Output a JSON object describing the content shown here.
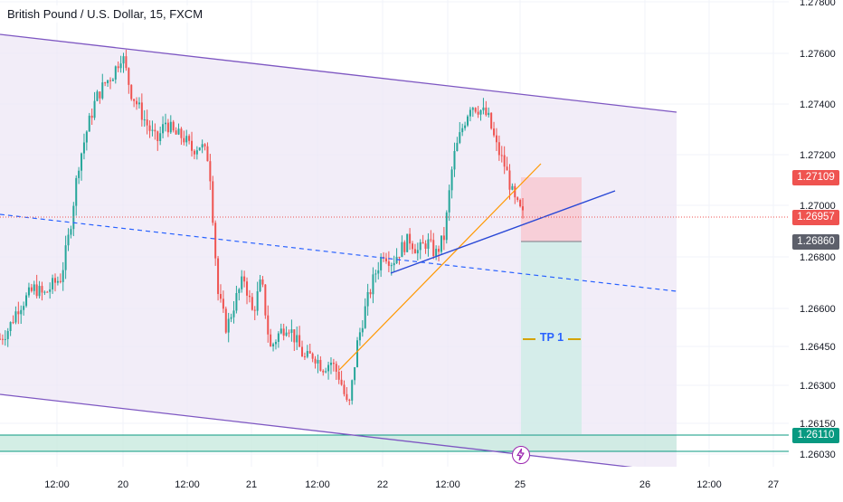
{
  "title": "British Pound / U.S. Dollar, 15, FXCM",
  "colors": {
    "channel": "#7e57c2",
    "channel_fill": "#ede7f6",
    "up_candle": "#26a69a",
    "down_candle": "#ef5350",
    "trendline_blue": "#2948d6",
    "trendline_orange": "#ff9800",
    "midline": "#2962ff",
    "stop_zone": "#f8c9d2",
    "target_zone": "#d2ece8",
    "support_zone": "#c8eadf",
    "current_price": "#ef5350",
    "entry_tag": "#5d606b",
    "support_tag": "#089981"
  },
  "chart_data": {
    "type": "candlestick",
    "symbol": "British Pound / U.S. Dollar",
    "interval": "15",
    "source": "FXCM",
    "x_tick_labels": [
      "12:00",
      "20",
      "12:00",
      "21",
      "12:00",
      "22",
      "12:00",
      "25",
      "26",
      "12:00",
      "27"
    ],
    "y_tick_labels": [
      "1.27800",
      "1.27600",
      "1.27400",
      "1.27200",
      "1.27000",
      "1.26800",
      "1.26600",
      "1.26450",
      "1.26300",
      "1.26150",
      "1.26030"
    ],
    "price_tags": [
      {
        "name": "stop",
        "value": "1.27109"
      },
      {
        "name": "current",
        "value": "1.26957"
      },
      {
        "name": "entry",
        "value": "1.26860"
      },
      {
        "name": "support",
        "value": "1.26110"
      }
    ],
    "annotations": [
      "TP 1"
    ],
    "price_path": [
      1.2648,
      1.2652,
      1.266,
      1.2664,
      1.2668,
      1.2665,
      1.2669,
      1.2672,
      1.269,
      1.2716,
      1.273,
      1.2742,
      1.2748,
      1.2752,
      1.276,
      1.2745,
      1.2738,
      1.2731,
      1.2725,
      1.2733,
      1.2728,
      1.2727,
      1.2722,
      1.2724,
      1.2718,
      1.2666,
      1.2652,
      1.2663,
      1.2672,
      1.2658,
      1.2671,
      1.2644,
      1.265,
      1.2654,
      1.2647,
      1.264,
      1.2642,
      1.2637,
      1.2639,
      1.2633,
      1.262,
      1.2646,
      1.2661,
      1.2673,
      1.2682,
      1.2678,
      1.2683,
      1.2687,
      1.2682,
      1.2686,
      1.2681,
      1.2688,
      1.2718,
      1.273,
      1.274,
      1.2738,
      1.2735,
      1.2723,
      1.2715,
      1.2702,
      1.2696
    ]
  }
}
